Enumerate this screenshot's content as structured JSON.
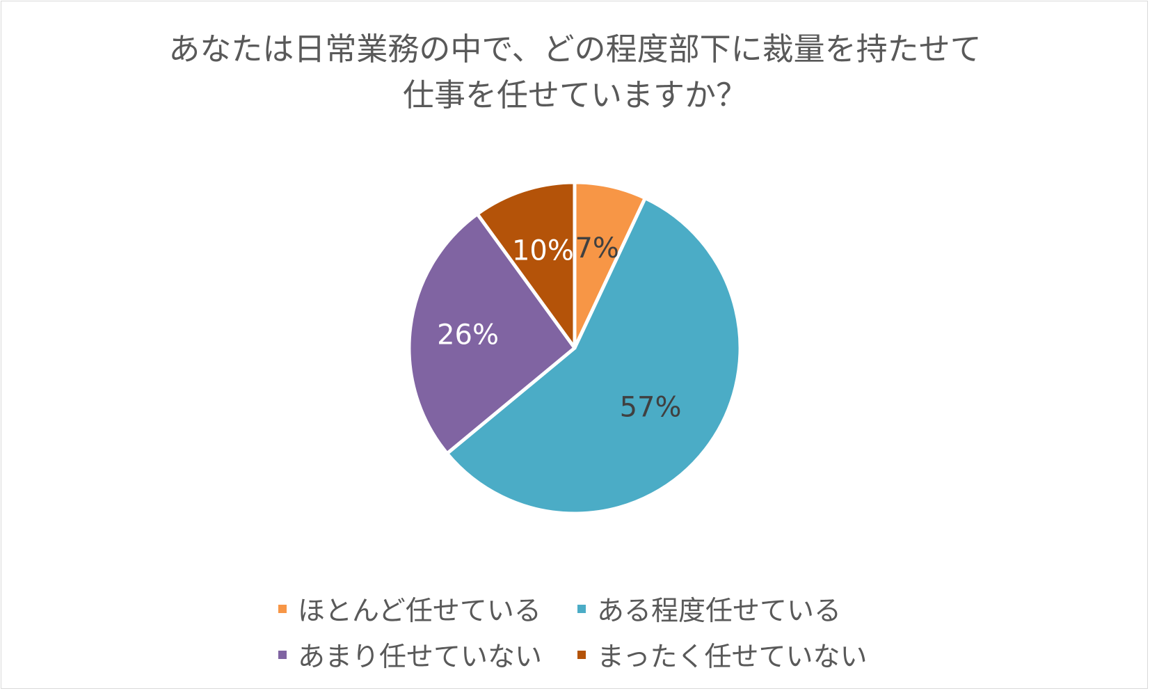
{
  "chart_data": {
    "type": "pie",
    "title": "あなたは日常業務の中で、どの程度部下に裁量を持たせて 仕事を任せていますか？",
    "title_lines": [
      "あなたは日常業務の中で、どの程度部下に裁量を持たせて",
      "仕事を任せていますか？"
    ],
    "categories": [
      "ほとんど任せている",
      "ある程度任せている",
      "あまり任せていない",
      "まったく任せていない"
    ],
    "values": [
      7,
      57,
      26,
      10
    ],
    "labels": [
      "7%",
      "57%",
      "26%",
      "10%"
    ],
    "colors": [
      "#F79646",
      "#4BACC6",
      "#8064A2",
      "#B45309"
    ],
    "label_colors": [
      "#404040",
      "#404040",
      "#ffffff",
      "#ffffff"
    ],
    "legend_position": "bottom",
    "start_angle": "12 o'clock",
    "direction": "clockwise"
  }
}
